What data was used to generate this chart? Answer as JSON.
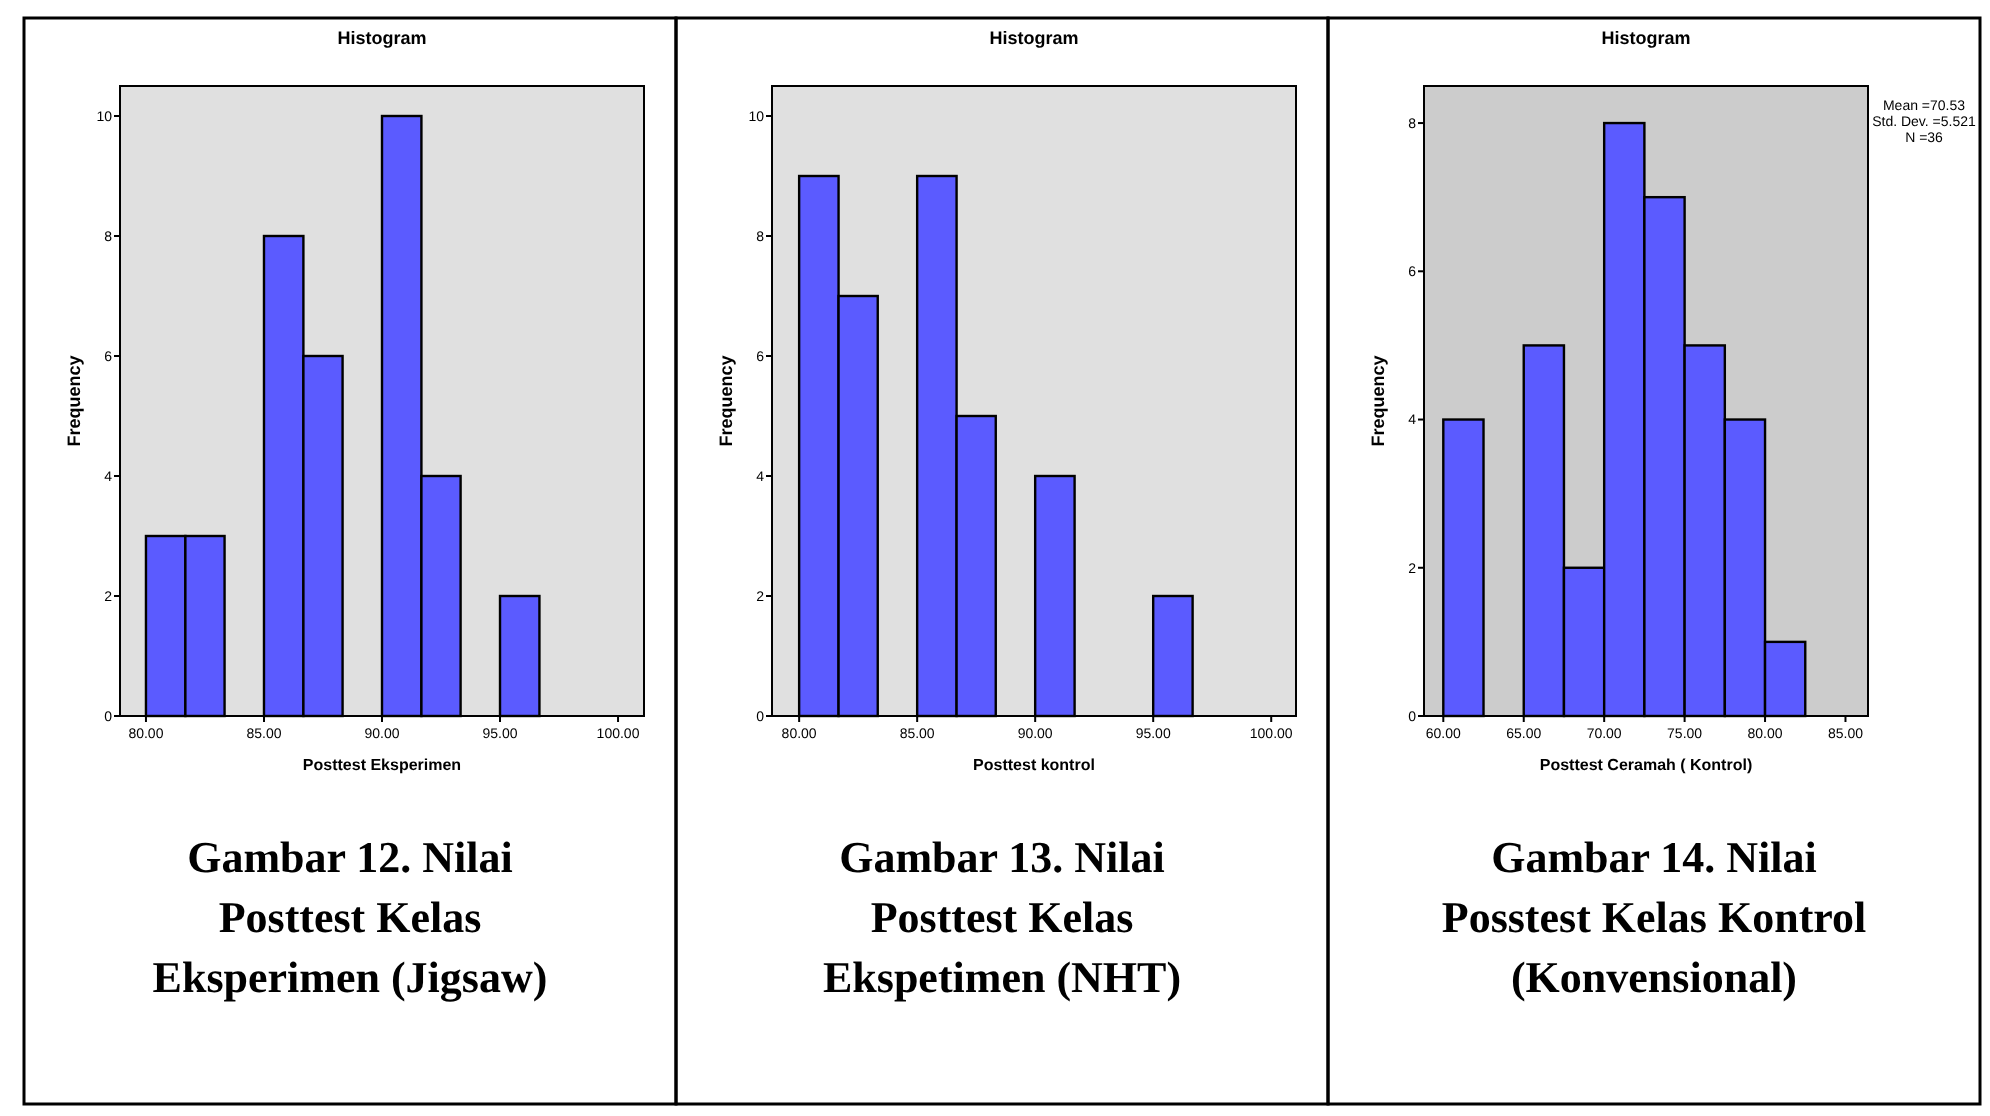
{
  "chart_data": [
    {
      "type": "histogram",
      "title": "Histogram",
      "xlabel": "Posttest Eksperimen",
      "ylabel": "Frequency",
      "bins": [
        80,
        81.67,
        83.33,
        85,
        86.67,
        88.33,
        90,
        91.67,
        93.33,
        95,
        96.67
      ],
      "values": [
        3,
        3,
        0,
        8,
        6,
        0,
        10,
        4,
        0,
        2
      ],
      "color": "#5b5bff",
      "xlim": [
        78.9,
        101.1
      ],
      "xticks": [
        {
          "value": 80,
          "label": "80.00"
        },
        {
          "value": 85,
          "label": "85.00"
        },
        {
          "value": 90,
          "label": "90.00"
        },
        {
          "value": 95,
          "label": "95.00"
        },
        {
          "value": 100,
          "label": "100.00"
        }
      ],
      "ylim": [
        0,
        10.5
      ],
      "yticks": [
        0,
        2,
        4,
        6,
        8,
        10
      ],
      "grid": false,
      "annotations": [
        "Gambar 12. Nilai Posttest Kelas Eksperimen (Jigsaw)"
      ]
    },
    {
      "type": "histogram",
      "title": "Histogram",
      "xlabel": "Posttest kontrol",
      "ylabel": "Frequency",
      "bins": [
        80,
        81.67,
        83.33,
        85,
        86.67,
        88.33,
        90,
        91.67,
        93.33,
        95,
        96.67
      ],
      "values": [
        9,
        7,
        0,
        9,
        5,
        0,
        4,
        0,
        0,
        2
      ],
      "color": "#5b5bff",
      "xlim": [
        78.85,
        101.05
      ],
      "xticks": [
        {
          "value": 80,
          "label": "80.00"
        },
        {
          "value": 85,
          "label": "85.00"
        },
        {
          "value": 90,
          "label": "90.00"
        },
        {
          "value": 95,
          "label": "95.00"
        },
        {
          "value": 100,
          "label": "100.00"
        }
      ],
      "ylim": [
        0,
        10.5
      ],
      "yticks": [
        0,
        2,
        4,
        6,
        8,
        10
      ],
      "grid": false,
      "annotations": [
        "Gambar 13. Nilai Posttest Kelas Ekspetimen (NHT)"
      ]
    },
    {
      "type": "histogram",
      "title": "Histogram",
      "xlabel": "Posttest Ceramah ( Kontrol)",
      "ylabel": "Frequency",
      "bins": [
        60,
        62.5,
        65,
        67.5,
        70,
        72.5,
        75,
        77.5,
        80,
        82.5
      ],
      "values": [
        4,
        0,
        5,
        2,
        8,
        7,
        5,
        4,
        1
      ],
      "color": "#5b5bff",
      "xlim": [
        58.8,
        86.4
      ],
      "xticks": [
        {
          "value": 60,
          "label": "60.00"
        },
        {
          "value": 65,
          "label": "65.00"
        },
        {
          "value": 70,
          "label": "70.00"
        },
        {
          "value": 75,
          "label": "75.00"
        },
        {
          "value": 80,
          "label": "80.00"
        },
        {
          "value": 85,
          "label": "85.00"
        }
      ],
      "ylim": [
        0,
        8.5
      ],
      "yticks": [
        0,
        2,
        4,
        6,
        8
      ],
      "grid": false,
      "annotations": [
        "Mean =70.53",
        "Std. Dev. =5.521",
        "N =36",
        "Gambar 14. Nilai Posstest Kelas Kontrol (Konvensional)"
      ]
    }
  ]
}
